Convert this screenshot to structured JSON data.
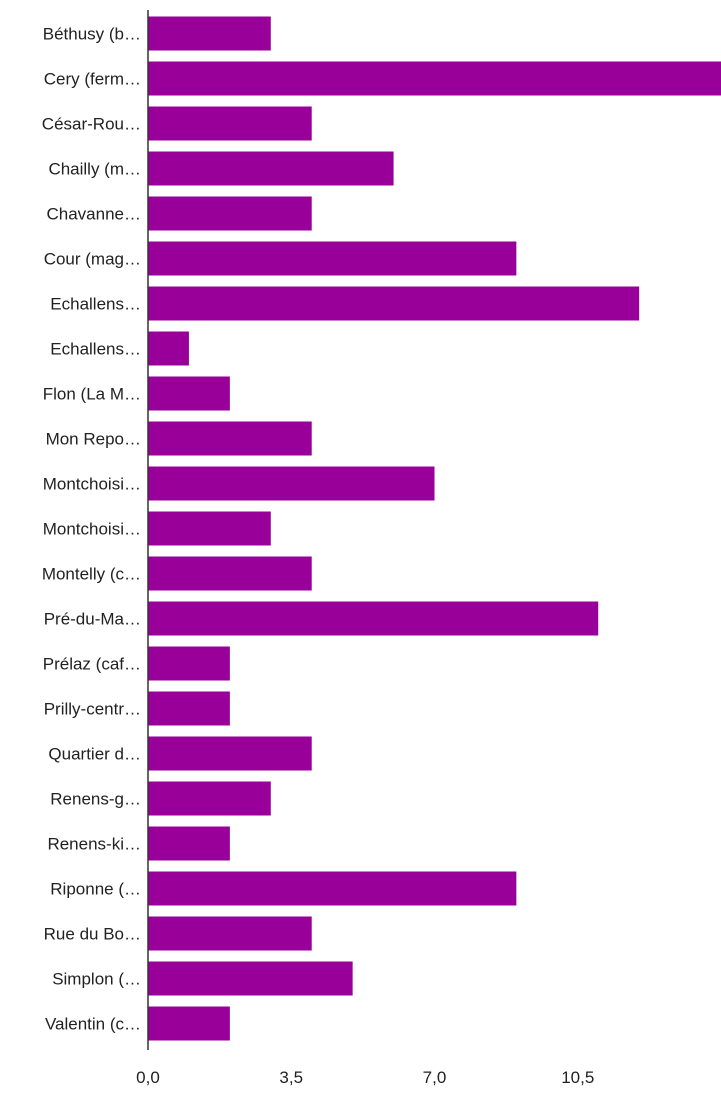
{
  "chart_data": {
    "type": "bar",
    "orientation": "horizontal",
    "title": "",
    "xlabel": "",
    "ylabel": "",
    "categories": [
      "Béthusy (b…",
      "Cery (ferm…",
      "César-Rou…",
      "Chailly (m…",
      "Chavanne…",
      "Cour (mag…",
      "Echallens…",
      "Echallens…",
      "Flon (La M…",
      "Mon Repo…",
      "Montchoisi…",
      "Montchoisi…",
      "Montelly (c…",
      "Pré-du-Ma…",
      "Prélaz (caf…",
      "Prilly-centr…",
      "Quartier d…",
      "Renens-g…",
      "Renens-ki…",
      "Riponne (…",
      "Rue du Bo…",
      "Simplon (…",
      "Valentin (c…"
    ],
    "values": [
      3,
      14,
      4,
      6,
      4,
      9,
      12,
      1,
      2,
      4,
      7,
      3,
      4,
      11,
      2,
      2,
      4,
      3,
      2,
      9,
      4,
      5,
      2
    ],
    "xlim": [
      0,
      14
    ],
    "x_ticks": [
      "0,0",
      "3,5",
      "7,0",
      "10,5"
    ],
    "x_tick_values": [
      0,
      3.5,
      7,
      10.5
    ],
    "grid": false,
    "legend": "none",
    "bar_color": "#990099",
    "axis_color": "#333333",
    "label_color": "#222222"
  }
}
